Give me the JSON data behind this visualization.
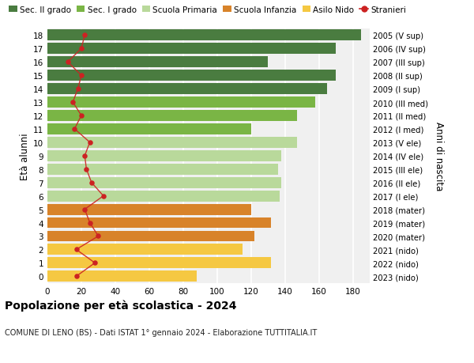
{
  "ages": [
    18,
    17,
    16,
    15,
    14,
    13,
    12,
    11,
    10,
    9,
    8,
    7,
    6,
    5,
    4,
    3,
    2,
    1,
    0
  ],
  "right_labels": [
    "2005 (V sup)",
    "2006 (IV sup)",
    "2007 (III sup)",
    "2008 (II sup)",
    "2009 (I sup)",
    "2010 (III med)",
    "2011 (II med)",
    "2012 (I med)",
    "2013 (V ele)",
    "2014 (IV ele)",
    "2015 (III ele)",
    "2016 (II ele)",
    "2017 (I ele)",
    "2018 (mater)",
    "2019 (mater)",
    "2020 (mater)",
    "2021 (nido)",
    "2022 (nido)",
    "2023 (nido)"
  ],
  "bar_values": [
    185,
    170,
    130,
    170,
    165,
    158,
    147,
    120,
    147,
    138,
    136,
    138,
    137,
    120,
    132,
    122,
    115,
    132,
    88
  ],
  "bar_colors": [
    "#4a7c40",
    "#4a7c40",
    "#4a7c40",
    "#4a7c40",
    "#4a7c40",
    "#7ab545",
    "#7ab545",
    "#7ab545",
    "#b9d99b",
    "#b9d99b",
    "#b9d99b",
    "#b9d99b",
    "#b9d99b",
    "#d8832a",
    "#d8832a",
    "#d8832a",
    "#f5c842",
    "#f5c842",
    "#f5c842"
  ],
  "stranieri_values": [
    22,
    20,
    12,
    20,
    18,
    15,
    20,
    16,
    25,
    22,
    23,
    26,
    33,
    22,
    25,
    30,
    17,
    28,
    17
  ],
  "legend_labels": [
    "Sec. II grado",
    "Sec. I grado",
    "Scuola Primaria",
    "Scuola Infanzia",
    "Asilo Nido",
    "Stranieri"
  ],
  "legend_colors": [
    "#4a7c40",
    "#7ab545",
    "#b9d99b",
    "#d8832a",
    "#f5c842",
    "#cc2222"
  ],
  "title": "Popolazione per età scolastica - 2024",
  "subtitle": "COMUNE DI LENO (BS) - Dati ISTAT 1° gennaio 2024 - Elaborazione TUTTITALIA.IT",
  "ylabel": "Età alunni",
  "ylabel2": "Anni di nascita",
  "xlim": [
    0,
    190
  ],
  "xticks": [
    0,
    20,
    40,
    60,
    80,
    100,
    120,
    140,
    160,
    180
  ],
  "plot_bg": "#f0f0f0",
  "fig_bg": "#ffffff",
  "stranieri_color": "#cc2222",
  "grid_color": "#ffffff"
}
